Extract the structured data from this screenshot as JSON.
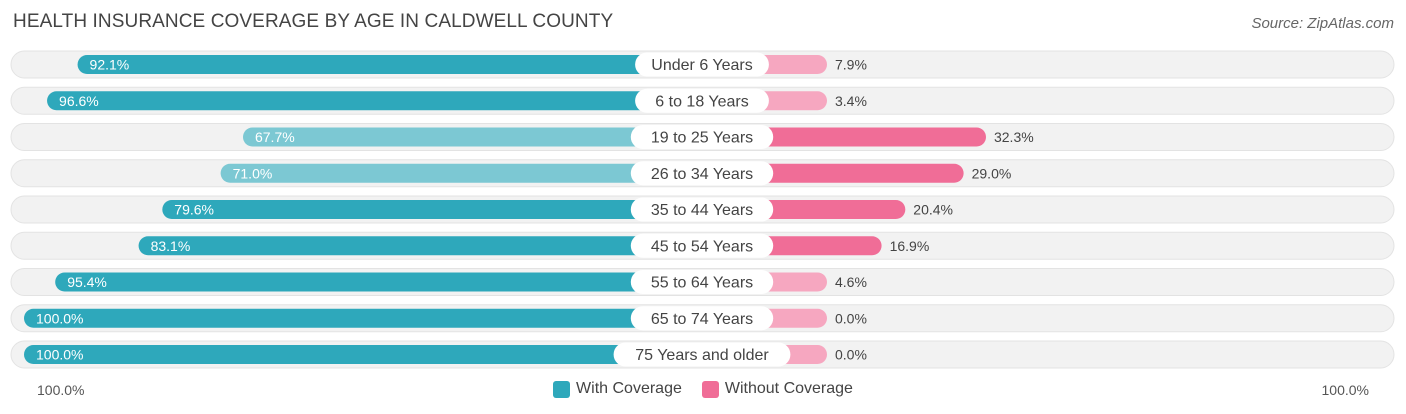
{
  "chart_data": {
    "type": "bar",
    "title": "HEALTH INSURANCE COVERAGE BY AGE IN CALDWELL COUNTY",
    "source": "Source: ZipAtlas.com",
    "categories": [
      "Under 6 Years",
      "6 to 18 Years",
      "19 to 25 Years",
      "26 to 34 Years",
      "35 to 44 Years",
      "45 to 54 Years",
      "55 to 64 Years",
      "65 to 74 Years",
      "75 Years and older"
    ],
    "series": [
      {
        "name": "With Coverage",
        "values": [
          92.1,
          96.6,
          67.7,
          71.0,
          79.6,
          83.1,
          95.4,
          100.0,
          100.0
        ],
        "labels": [
          "92.1%",
          "96.6%",
          "67.7%",
          "71.0%",
          "79.6%",
          "83.1%",
          "95.4%",
          "100.0%",
          "100.0%"
        ]
      },
      {
        "name": "Without Coverage",
        "values": [
          7.9,
          3.4,
          32.3,
          29.0,
          20.4,
          16.9,
          4.6,
          0.0,
          0.0
        ],
        "labels": [
          "7.9%",
          "3.4%",
          "32.3%",
          "29.0%",
          "20.4%",
          "16.9%",
          "4.6%",
          "0.0%",
          "0.0%"
        ]
      }
    ],
    "axis": {
      "left_label": "100.0%",
      "right_label": "100.0%",
      "xlim": [
        0,
        100
      ]
    },
    "colors": {
      "with_strong": "#2ea8bb",
      "with_light": "#7cc8d3",
      "without_strong": "#f06d97",
      "without_light": "#f6a7c0",
      "track": "#f1f1f1"
    },
    "legend": [
      {
        "label": "With Coverage",
        "color": "#2ea8bb"
      },
      {
        "label": "Without Coverage",
        "color": "#f06d97"
      }
    ]
  }
}
